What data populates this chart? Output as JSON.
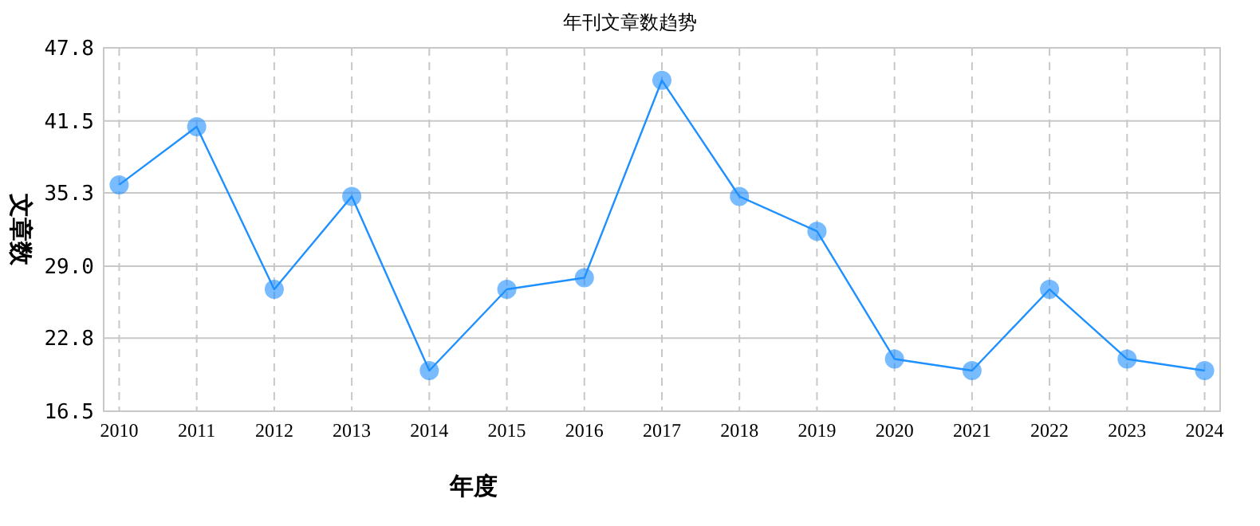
{
  "chart_data": {
    "type": "line",
    "title": "年刊文章数趋势",
    "xlabel": "年度",
    "ylabel": "文章数",
    "categories": [
      "2010",
      "2011",
      "2012",
      "2013",
      "2014",
      "2015",
      "2016",
      "2017",
      "2018",
      "2019",
      "2020",
      "2021",
      "2022",
      "2023",
      "2024"
    ],
    "series": [
      {
        "color": "#1e90ff",
        "values": [
          36,
          41,
          27,
          35,
          20,
          27,
          28,
          45,
          35,
          32,
          21,
          20,
          27,
          21,
          20
        ]
      }
    ],
    "ylim": [
      16.5,
      47.8
    ],
    "yticks": [
      {
        "value": 16.5,
        "label": "16.5"
      },
      {
        "value": 22.8,
        "label": "22.8"
      },
      {
        "value": 29,
        "label": "29.0"
      },
      {
        "value": 35.3,
        "label": "35.3"
      },
      {
        "value": 41.5,
        "label": "41.5"
      },
      {
        "value": 47.8,
        "label": "47.8"
      }
    ],
    "grid": true,
    "marker": "circle",
    "line_style": "solid"
  }
}
